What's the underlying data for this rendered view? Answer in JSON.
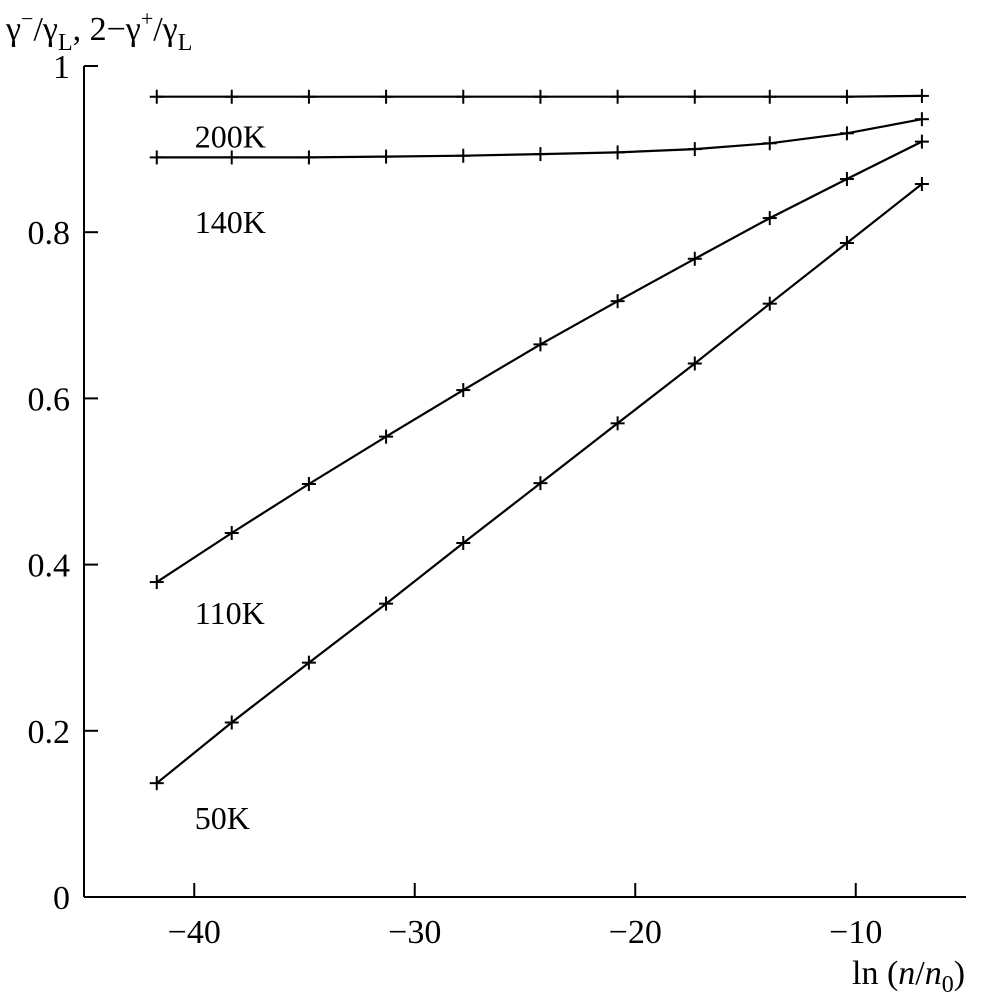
{
  "chart_data": {
    "type": "line",
    "ylabel": "γ⁻/γL, 2−γ⁺/γL",
    "xlabel": "ln (n/n0)",
    "xlim": [
      -45,
      -5
    ],
    "ylim": [
      0,
      1
    ],
    "x_ticks": [
      -40,
      -30,
      -20,
      -10
    ],
    "x_tick_labels": [
      "−40",
      "−30",
      "−20",
      "−10"
    ],
    "y_ticks": [
      0,
      0.2,
      0.4,
      0.6,
      0.8,
      1
    ],
    "y_tick_labels": [
      "0",
      "0.2",
      "0.4",
      "0.6",
      "0.8",
      "1"
    ],
    "grid": false,
    "x": [
      -41.7,
      -38.3,
      -34.8,
      -31.3,
      -27.8,
      -24.3,
      -20.8,
      -17.3,
      -13.9,
      -10.4,
      -7.0
    ],
    "series": [
      {
        "name": "200K",
        "values": [
          0.963,
          0.963,
          0.963,
          0.963,
          0.963,
          0.963,
          0.963,
          0.963,
          0.963,
          0.963,
          0.964
        ]
      },
      {
        "name": "140K",
        "values": [
          0.89,
          0.89,
          0.89,
          0.891,
          0.892,
          0.894,
          0.896,
          0.9,
          0.907,
          0.919,
          0.936
        ]
      },
      {
        "name": "110K",
        "values": [
          0.379,
          0.438,
          0.497,
          0.554,
          0.61,
          0.665,
          0.717,
          0.768,
          0.817,
          0.864,
          0.909
        ]
      },
      {
        "name": "50K",
        "values": [
          0.137,
          0.21,
          0.282,
          0.353,
          0.426,
          0.498,
          0.57,
          0.642,
          0.714,
          0.787,
          0.858
        ]
      }
    ]
  }
}
